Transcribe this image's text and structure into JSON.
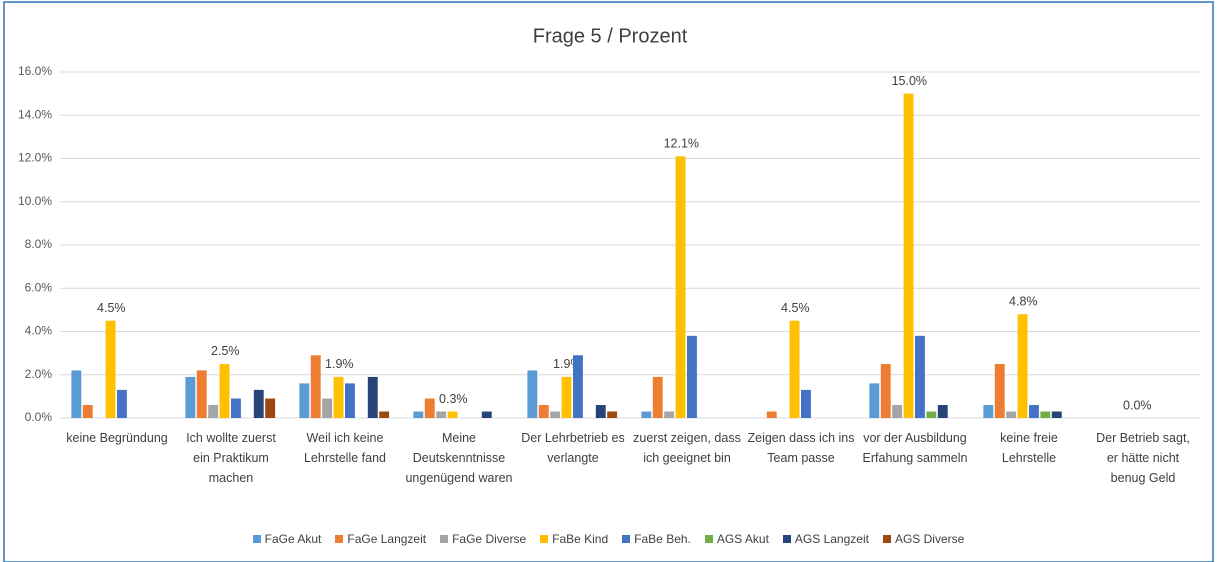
{
  "chart_data": {
    "type": "bar",
    "title": "Frage 5 / Prozent",
    "categories": [
      "keine Begründung",
      "Ich wollte zuerst ein Praktikum machen",
      "Weil ich keine Lehrstelle fand",
      "Meine Deutskenntnisse ungenügend waren",
      "Der Lehrbetrieb es verlangte",
      "zuerst zeigen, dass ich geeignet bin",
      "Zeigen dass ich ins Team passe",
      "vor der Ausbildung Erfahung sammeln",
      "keine freie Lehrstelle",
      "Der Betrieb sagt, er hätte nicht benug Geld"
    ],
    "series": [
      {
        "name": "FaGe Akut",
        "color": "#5b9bd5",
        "values": [
          2.2,
          1.9,
          1.6,
          0.3,
          2.2,
          0.3,
          0,
          1.6,
          0.6,
          0
        ]
      },
      {
        "name": "FaGe Langzeit",
        "color": "#ed7d31",
        "values": [
          0.6,
          2.2,
          2.9,
          0.9,
          0.6,
          1.9,
          0.3,
          2.5,
          2.5,
          0
        ]
      },
      {
        "name": "FaGe Diverse",
        "color": "#a5a5a5",
        "values": [
          0,
          0.6,
          0.9,
          0.3,
          0.3,
          0.3,
          0,
          0.6,
          0.3,
          0
        ]
      },
      {
        "name": "FaBe Kind",
        "color": "#ffc000",
        "values": [
          4.5,
          2.5,
          1.9,
          0.3,
          1.9,
          12.1,
          4.5,
          15.0,
          4.8,
          0
        ],
        "value_labels": [
          "4.5%",
          "2.5%",
          "1.9%",
          "0.3%",
          "1.9%",
          "12.1%",
          "4.5%",
          "15.0%",
          "4.8%",
          "0.0%"
        ]
      },
      {
        "name": "FaBe Beh.",
        "color": "#4472c4",
        "values": [
          1.3,
          0.9,
          1.6,
          0,
          2.9,
          3.8,
          1.3,
          3.8,
          0.6,
          0
        ]
      },
      {
        "name": "AGS Akut",
        "color": "#70ad47",
        "values": [
          0,
          0,
          0,
          0,
          0,
          0,
          0,
          0.3,
          0.3,
          0
        ]
      },
      {
        "name": "AGS Langzeit",
        "color": "#264478",
        "values": [
          0,
          1.3,
          1.9,
          0.3,
          0.6,
          0,
          0,
          0.6,
          0.3,
          0
        ]
      },
      {
        "name": "AGS Diverse",
        "color": "#9e480e",
        "values": [
          0,
          0.9,
          0.3,
          0,
          0.3,
          0,
          0,
          0,
          0,
          0
        ]
      }
    ],
    "ylim": [
      0,
      16
    ],
    "yticks": [
      {
        "value": 0,
        "label": "0.0%"
      },
      {
        "value": 2,
        "label": "2.0%"
      },
      {
        "value": 4,
        "label": "4.0%"
      },
      {
        "value": 6,
        "label": "6.0%"
      },
      {
        "value": 8,
        "label": "8.0%"
      },
      {
        "value": 10,
        "label": "10.0%"
      },
      {
        "value": 12,
        "label": "12.0%"
      },
      {
        "value": 14,
        "label": "14.0%"
      },
      {
        "value": 16,
        "label": "16.0%"
      }
    ],
    "grid": true
  }
}
